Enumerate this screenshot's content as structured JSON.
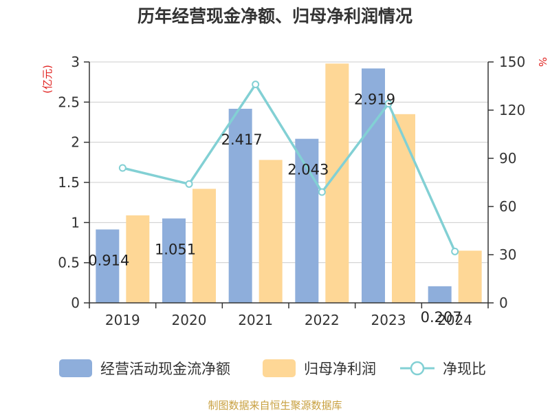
{
  "chart_data": {
    "type": "bar",
    "title": "历年经营现金净额、归母净利润情况",
    "categories": [
      "2019",
      "2020",
      "2021",
      "2022",
      "2023",
      "2024"
    ],
    "series": [
      {
        "name": "经营活动现金流净额",
        "type": "bar",
        "axis": "left",
        "color": "#8eaedb",
        "values": [
          0.914,
          1.051,
          2.417,
          2.043,
          2.919,
          0.207
        ],
        "labels": [
          "0.914",
          "1.051",
          "2.417",
          "2.043",
          "2.919",
          "0.207"
        ]
      },
      {
        "name": "归母净利润",
        "type": "bar",
        "axis": "left",
        "color": "#fed796",
        "values": [
          1.09,
          1.42,
          1.78,
          2.98,
          2.35,
          0.65
        ]
      },
      {
        "name": "净现比",
        "type": "line",
        "axis": "right",
        "color": "#82d0d4",
        "values": [
          84,
          74,
          136,
          69,
          124,
          32
        ]
      }
    ],
    "y_left": {
      "unit": "(亿元)",
      "ylim": [
        0,
        3
      ],
      "ticks": [
        "0",
        "0.5",
        "1",
        "1.5",
        "2",
        "2.5",
        "3"
      ]
    },
    "y_right": {
      "unit": "%",
      "ylim": [
        0,
        150
      ],
      "ticks": [
        "0",
        "30",
        "60",
        "90",
        "120",
        "150"
      ]
    },
    "grid": true,
    "legend": "bottom"
  },
  "source": "制图数据来自恒生聚源数据库"
}
